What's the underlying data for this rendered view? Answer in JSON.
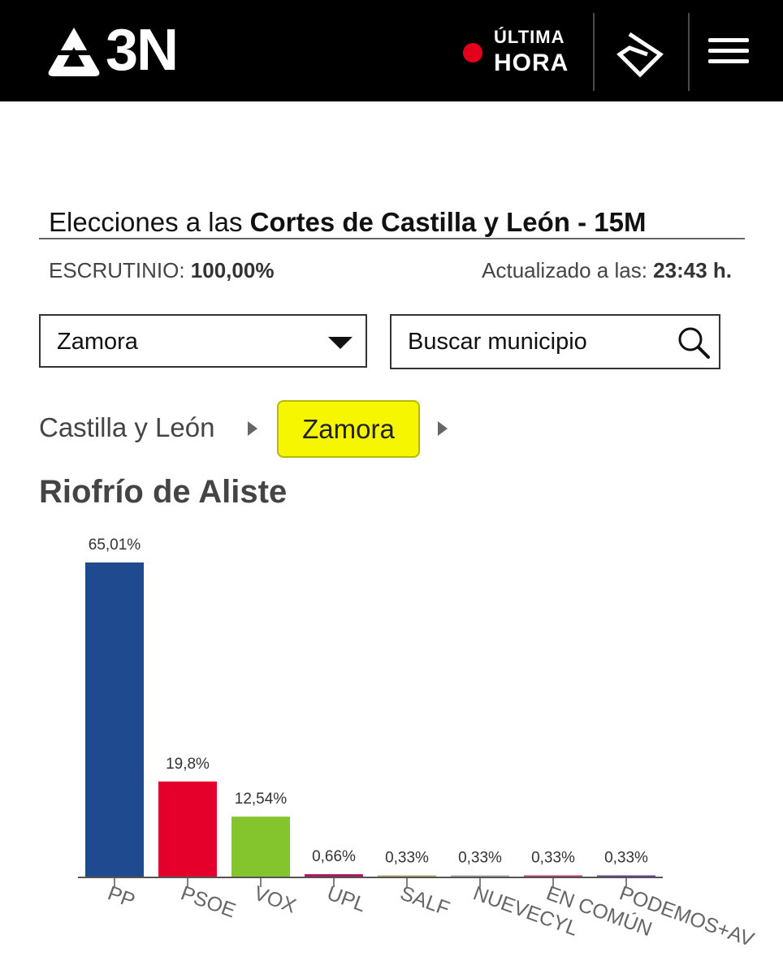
{
  "header": {
    "logo_text": "3N",
    "live_line1": "ÚLTIMA",
    "live_line2": "HORA",
    "colors": {
      "background": "#000000",
      "live_dot": "#e4001b"
    },
    "icons": [
      "antena3-logo-icon",
      "atresplayer-icon",
      "menu-icon"
    ]
  },
  "election": {
    "title_prefix": "Elecciones a las ",
    "title_bold": "Cortes de Castilla y León - 15M",
    "scrutiny_label": "ESCRUTINIO: ",
    "scrutiny_value": "100,00%",
    "updated_label": "Actualizado a las: ",
    "updated_value": "23:43 h."
  },
  "filters": {
    "province_selected": "Zamora",
    "search_placeholder": "Buscar municipio"
  },
  "breadcrumb": {
    "root": "Castilla y León",
    "current": "Zamora"
  },
  "municipality": "Riofrío de Aliste",
  "chart_data": {
    "type": "bar",
    "categories": [
      "PP",
      "PSOE",
      "VOX",
      "UPL",
      "SALF",
      "NUEVECYL",
      "EN COMÚN",
      "PODEMOS+AV"
    ],
    "values": [
      65.01,
      19.8,
      12.54,
      0.66,
      0.33,
      0.33,
      0.33,
      0.33
    ],
    "value_labels": [
      "65,01%",
      "19,8%",
      "12,54%",
      "0,66%",
      "0,33%",
      "0,33%",
      "0,33%",
      "0,33%"
    ],
    "colors": [
      "#1f4a8f",
      "#e4002b",
      "#84c52e",
      "#b0175e",
      "#b9a46a",
      "#a8a8a8",
      "#c83a6c",
      "#6b3f9a"
    ],
    "ylim": [
      0,
      65.01
    ],
    "grid": false
  }
}
